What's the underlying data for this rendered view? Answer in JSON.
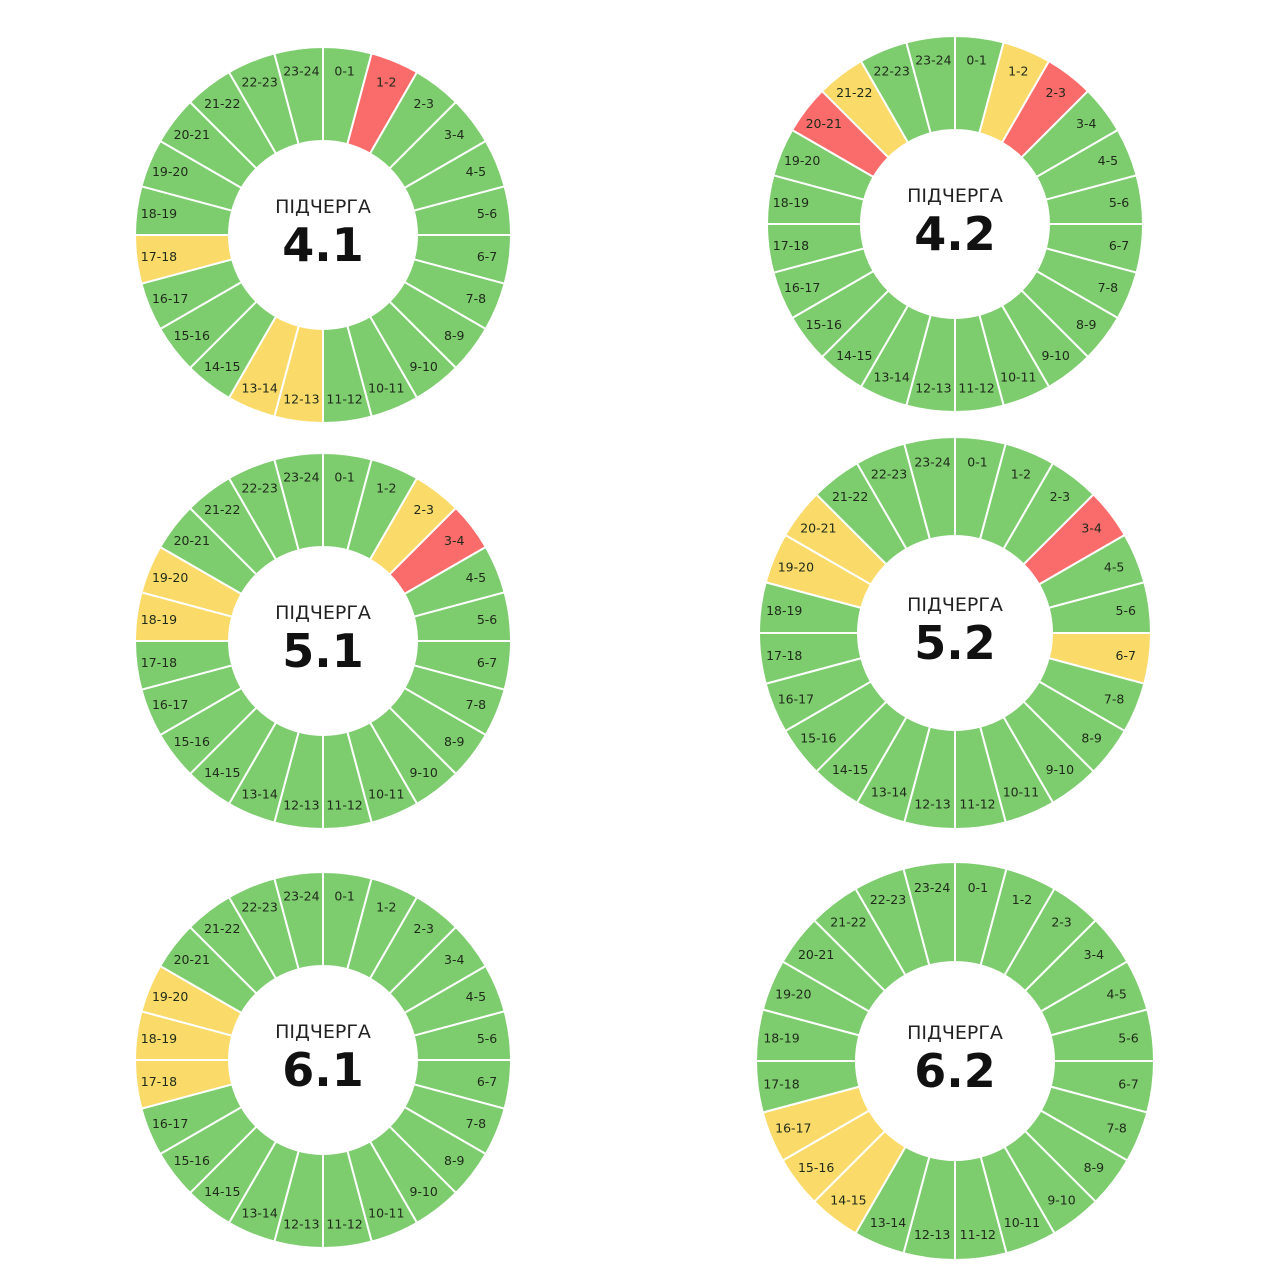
{
  "colors": {
    "on": "#7dcc6e",
    "possible": "#fadb6a",
    "off": "#fa6b6b",
    "separator": "#ffffff"
  },
  "chart_data": [
    {
      "type": "pie",
      "caption": "ПІДЧЕРГА",
      "title": "4.1",
      "categories": [
        "0-1",
        "1-2",
        "2-3",
        "3-4",
        "4-5",
        "5-6",
        "6-7",
        "7-8",
        "8-9",
        "9-10",
        "10-11",
        "11-12",
        "12-13",
        "13-14",
        "14-15",
        "15-16",
        "16-17",
        "17-18",
        "18-19",
        "19-20",
        "20-21",
        "21-22",
        "22-23",
        "23-24"
      ],
      "status": [
        "on",
        "off",
        "on",
        "on",
        "on",
        "on",
        "on",
        "on",
        "on",
        "on",
        "on",
        "on",
        "possible",
        "possible",
        "on",
        "on",
        "on",
        "possible",
        "on",
        "on",
        "on",
        "on",
        "on",
        "on"
      ]
    },
    {
      "type": "pie",
      "caption": "ПІДЧЕРГА",
      "title": "4.2",
      "categories": [
        "0-1",
        "1-2",
        "2-3",
        "3-4",
        "4-5",
        "5-6",
        "6-7",
        "7-8",
        "8-9",
        "9-10",
        "10-11",
        "11-12",
        "12-13",
        "13-14",
        "14-15",
        "15-16",
        "16-17",
        "17-18",
        "18-19",
        "19-20",
        "20-21",
        "21-22",
        "22-23",
        "23-24"
      ],
      "status": [
        "on",
        "possible",
        "off",
        "on",
        "on",
        "on",
        "on",
        "on",
        "on",
        "on",
        "on",
        "on",
        "on",
        "on",
        "on",
        "on",
        "on",
        "on",
        "on",
        "on",
        "off",
        "possible",
        "on",
        "on"
      ]
    },
    {
      "type": "pie",
      "caption": "ПІДЧЕРГА",
      "title": "5.1",
      "categories": [
        "0-1",
        "1-2",
        "2-3",
        "3-4",
        "4-5",
        "5-6",
        "6-7",
        "7-8",
        "8-9",
        "9-10",
        "10-11",
        "11-12",
        "12-13",
        "13-14",
        "14-15",
        "15-16",
        "16-17",
        "17-18",
        "18-19",
        "19-20",
        "20-21",
        "21-22",
        "22-23",
        "23-24"
      ],
      "status": [
        "on",
        "on",
        "possible",
        "off",
        "on",
        "on",
        "on",
        "on",
        "on",
        "on",
        "on",
        "on",
        "on",
        "on",
        "on",
        "on",
        "on",
        "on",
        "possible",
        "possible",
        "on",
        "on",
        "on",
        "on"
      ]
    },
    {
      "type": "pie",
      "caption": "ПІДЧЕРГА",
      "title": "5.2",
      "categories": [
        "0-1",
        "1-2",
        "2-3",
        "3-4",
        "4-5",
        "5-6",
        "6-7",
        "7-8",
        "8-9",
        "9-10",
        "10-11",
        "11-12",
        "12-13",
        "13-14",
        "14-15",
        "15-16",
        "16-17",
        "17-18",
        "18-19",
        "19-20",
        "20-21",
        "21-22",
        "22-23",
        "23-24"
      ],
      "status": [
        "on",
        "on",
        "on",
        "off",
        "on",
        "on",
        "possible",
        "on",
        "on",
        "on",
        "on",
        "on",
        "on",
        "on",
        "on",
        "on",
        "on",
        "on",
        "on",
        "possible",
        "possible",
        "on",
        "on",
        "on"
      ]
    },
    {
      "type": "pie",
      "caption": "ПІДЧЕРГА",
      "title": "6.1",
      "categories": [
        "0-1",
        "1-2",
        "2-3",
        "3-4",
        "4-5",
        "5-6",
        "6-7",
        "7-8",
        "8-9",
        "9-10",
        "10-11",
        "11-12",
        "12-13",
        "13-14",
        "14-15",
        "15-16",
        "16-17",
        "17-18",
        "18-19",
        "19-20",
        "20-21",
        "21-22",
        "22-23",
        "23-24"
      ],
      "status": [
        "on",
        "on",
        "on",
        "on",
        "on",
        "on",
        "on",
        "on",
        "on",
        "on",
        "on",
        "on",
        "on",
        "on",
        "on",
        "on",
        "on",
        "possible",
        "possible",
        "possible",
        "on",
        "on",
        "on",
        "on"
      ]
    },
    {
      "type": "pie",
      "caption": "ПІДЧЕРГА",
      "title": "6.2",
      "categories": [
        "0-1",
        "1-2",
        "2-3",
        "3-4",
        "4-5",
        "5-6",
        "6-7",
        "7-8",
        "8-9",
        "9-10",
        "10-11",
        "11-12",
        "12-13",
        "13-14",
        "14-15",
        "15-16",
        "16-17",
        "17-18",
        "18-19",
        "19-20",
        "20-21",
        "21-22",
        "22-23",
        "23-24"
      ],
      "status": [
        "on",
        "on",
        "on",
        "on",
        "on",
        "on",
        "on",
        "on",
        "on",
        "on",
        "on",
        "on",
        "on",
        "on",
        "possible",
        "possible",
        "possible",
        "on",
        "on",
        "on",
        "on",
        "on",
        "on",
        "on"
      ]
    }
  ]
}
